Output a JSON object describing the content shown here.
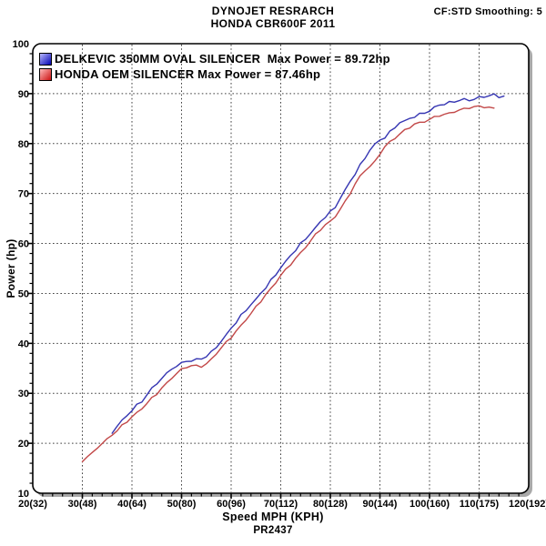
{
  "header": {
    "title_line1": "DYNOJET RESRARCH",
    "title_line2": "HONDA CBR600F 2011",
    "smoothing": "CF:STD Smoothing: 5"
  },
  "footer": {
    "xlabel": "Speed MPH (KPH)",
    "run_id": "PR2437"
  },
  "colors": {
    "background": "#ffffff",
    "frame": "#000000",
    "grid": "#404040",
    "shadow": "#a9a9a9",
    "delkevic_line": "#3535b2",
    "honda_line": "#c24848"
  },
  "chart_data": {
    "type": "line",
    "title": "DYNOJET RESRARCH - HONDA CBR600F 2011",
    "xlabel": "Speed MPH (KPH)",
    "ylabel": "Power (hp)",
    "xlim": [
      20,
      120
    ],
    "ylim": [
      10,
      100
    ],
    "grid": "dashed lines at major ticks, on",
    "legend_position": "top-left inside plot",
    "x_major_ticks": [
      20,
      30,
      40,
      50,
      60,
      70,
      80,
      90,
      100,
      110,
      120
    ],
    "x_tick_labels": [
      "20(32)",
      "30(48)",
      "40(64)",
      "50(80)",
      "60(96)",
      "70(112)",
      "80(128)",
      "90(144)",
      "100(160)",
      "110(175)",
      "120(192)"
    ],
    "y_major_ticks": [
      10,
      20,
      30,
      40,
      50,
      60,
      70,
      80,
      90,
      100
    ],
    "y_tick_labels": [
      "10",
      "20",
      "30",
      "40",
      "50",
      "60",
      "70",
      "80",
      "90",
      "100"
    ],
    "minor_tick_step_x": 2,
    "minor_tick_step_y": 2,
    "series": [
      {
        "name": "DELKEVIC 350MM OVAL SILENCER",
        "legend_label": "DELKEVIC 350MM OVAL SILENCER  Max Power = 89.72hp",
        "max_power_hp": 89.72,
        "color": "#3535b2",
        "swatch_from": "#b9b9ff",
        "swatch_to": "#0000b0",
        "mph_start": 36,
        "mph_step": 1,
        "hp": [
          22.0,
          23.4,
          24.6,
          25.6,
          26.7,
          27.7,
          28.2,
          29.7,
          30.9,
          31.8,
          33.1,
          34.0,
          34.9,
          35.6,
          36.1,
          36.4,
          36.5,
          36.7,
          36.8,
          37.4,
          38.3,
          39.2,
          40.6,
          41.7,
          43.1,
          44.2,
          45.6,
          46.5,
          47.8,
          48.7,
          50.1,
          51.2,
          52.7,
          53.8,
          55.3,
          56.3,
          57.6,
          58.6,
          59.9,
          60.8,
          62.1,
          63.1,
          64.5,
          65.4,
          66.4,
          67.2,
          69.1,
          70.6,
          72.4,
          73.9,
          75.7,
          77.1,
          78.9,
          79.9,
          80.8,
          81.2,
          82.3,
          83.1,
          84.2,
          84.4,
          85.1,
          85.4,
          86.0,
          86.2,
          86.6,
          87.2,
          87.7,
          87.8,
          88.2,
          88.3,
          88.7,
          88.9,
          88.7,
          89.0,
          89.3,
          89.3,
          89.6,
          89.72,
          89.2,
          89.5
        ]
      },
      {
        "name": "HONDA OEM SILENCER",
        "legend_label": "HONDA OEM SILENCER Max Power = 87.46hp",
        "max_power_hp": 87.46,
        "color": "#c24848",
        "swatch_from": "#ffb9b9",
        "swatch_to": "#cc1111",
        "mph_start": 30,
        "mph_step": 1,
        "hp": [
          16.3,
          17.3,
          18.1,
          19.2,
          20.0,
          20.8,
          21.7,
          22.4,
          23.5,
          24.3,
          25.3,
          26.1,
          27.1,
          28.0,
          29.1,
          29.9,
          31.0,
          31.9,
          33.0,
          33.9,
          34.8,
          35.3,
          35.6,
          35.6,
          35.4,
          35.9,
          36.7,
          37.9,
          39.0,
          40.2,
          41.2,
          42.5,
          43.6,
          44.9,
          46.0,
          47.3,
          48.4,
          49.7,
          50.8,
          52.2,
          53.6,
          54.8,
          55.9,
          57.1,
          58.1,
          59.3,
          60.4,
          61.7,
          62.7,
          63.7,
          64.4,
          65.5,
          66.9,
          68.5,
          70.1,
          71.9,
          73.4,
          74.6,
          75.3,
          76.4,
          78.0,
          79.4,
          80.4,
          81.2,
          81.9,
          82.7,
          83.2,
          83.8,
          84.1,
          84.4,
          84.8,
          85.4,
          85.7,
          85.9,
          86.1,
          86.4,
          86.6,
          86.9,
          87.1,
          87.3,
          87.46,
          87.4,
          87.3,
          87.1
        ]
      }
    ]
  }
}
